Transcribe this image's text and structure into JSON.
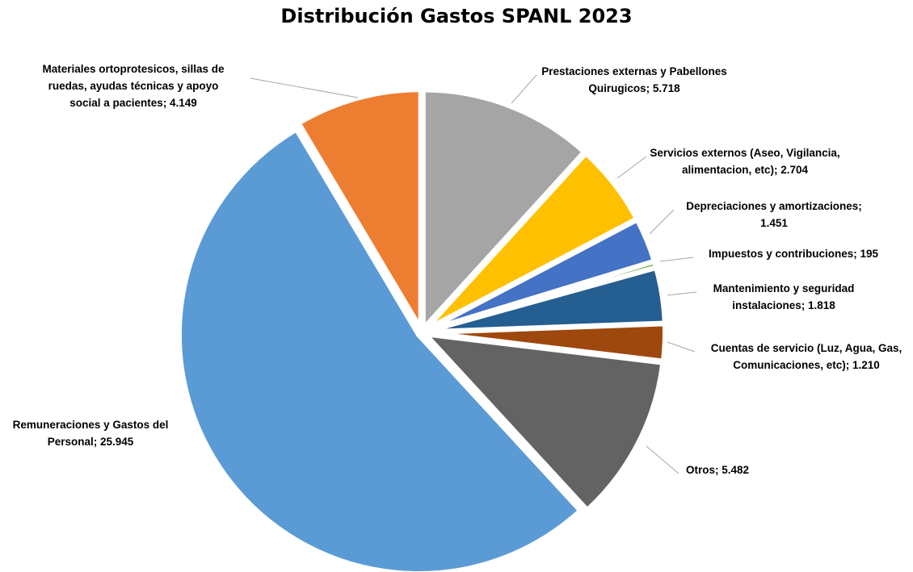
{
  "chart_data": {
    "type": "pie",
    "title": "Distribución Gastos SPANL 2023",
    "legend": "none",
    "slices": [
      {
        "name": "Prestaciones externas y Pabellones Quirugicos",
        "value": 5718,
        "value_label": "5.718",
        "color": "#A5A5A5",
        "label_lines": [
          "Prestaciones externas y Pabellones",
          "Quirugicos; 5.718"
        ]
      },
      {
        "name": "Servicios externos (Aseo, Vigilancia, alimentacion, etc)",
        "value": 2704,
        "value_label": "2.704",
        "color": "#FFC000",
        "label_lines": [
          "Servicios externos (Aseo, Vigilancia,",
          "alimentacion, etc); 2.704"
        ]
      },
      {
        "name": "Depreciaciones y amortizaciones",
        "value": 1451,
        "value_label": "1.451",
        "color": "#4472C4",
        "label_lines": [
          "Depreciaciones y amortizaciones;",
          "1.451"
        ]
      },
      {
        "name": "Impuestos y contribuciones",
        "value": 195,
        "value_label": "195",
        "color": "#70AD47",
        "label_lines": [
          "Impuestos y contribuciones; 195"
        ]
      },
      {
        "name": "Mantenimiento y seguridad instalaciones",
        "value": 1818,
        "value_label": "1.818",
        "color": "#255E91",
        "label_lines": [
          "Mantenimiento y seguridad",
          "instalaciones; 1.818"
        ]
      },
      {
        "name": "Cuentas de servicio  (Luz, Agua, Gas, Comunicaciones, etc)",
        "value": 1210,
        "value_label": "1.210",
        "color": "#9E480E",
        "label_lines": [
          "Cuentas de servicio  (Luz, Agua, Gas,",
          "Comunicaciones, etc); 1.210"
        ]
      },
      {
        "name": "Otros",
        "value": 5482,
        "value_label": "5.482",
        "color": "#636363",
        "label_lines": [
          "Otros; 5.482"
        ]
      },
      {
        "name": "Remuneraciones y Gastos del Personal",
        "value": 25945,
        "value_label": "25.945",
        "color": "#5B9BD5",
        "label_lines": [
          "Remuneraciones y Gastos del",
          "Personal; 25.945"
        ]
      },
      {
        "name": "Materiales ortoprotesicos, sillas de ruedas, ayudas técnicas y apoyo social a pacientes",
        "value": 4149,
        "value_label": "4.149",
        "color": "#ED7D31",
        "label_lines": [
          "Materiales ortoprotesicos, sillas de",
          "ruedas, ayudas técnicas y apoyo",
          "social a pacientes; 4.149"
        ]
      }
    ]
  }
}
